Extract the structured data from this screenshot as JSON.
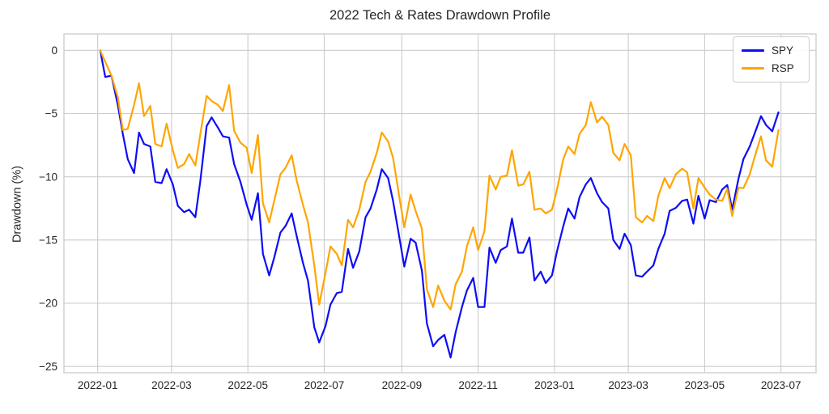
{
  "chart_data": {
    "type": "line",
    "title": "2022 Tech & Rates Drawdown Profile",
    "ylabel": "Drawdown (%)",
    "xlabel": "",
    "grid": true,
    "legend_position": "upper right",
    "background": "#ffffff",
    "grid_color": "#cbcbcb",
    "text_color": "#262626",
    "xlim": [
      "2021-12-05",
      "2023-07-29"
    ],
    "ylim": [
      -25.5,
      1.3
    ],
    "y_ticks": [
      {
        "label": "0",
        "value": 0
      },
      {
        "label": "−5",
        "value": -5
      },
      {
        "label": "−10",
        "value": -10
      },
      {
        "label": "−15",
        "value": -15
      },
      {
        "label": "−20",
        "value": -20
      },
      {
        "label": "−25",
        "value": -25
      }
    ],
    "x_ticks": [
      {
        "label": "2022-01",
        "date": "2022-01-01"
      },
      {
        "label": "2022-03",
        "date": "2022-03-01"
      },
      {
        "label": "2022-05",
        "date": "2022-05-01"
      },
      {
        "label": "2022-07",
        "date": "2022-07-01"
      },
      {
        "label": "2022-09",
        "date": "2022-09-01"
      },
      {
        "label": "2022-11",
        "date": "2022-11-01"
      },
      {
        "label": "2023-01",
        "date": "2023-01-01"
      },
      {
        "label": "2023-03",
        "date": "2023-03-01"
      },
      {
        "label": "2023-05",
        "date": "2023-05-01"
      },
      {
        "label": "2023-07",
        "date": "2023-07-01"
      }
    ],
    "x": [
      "2022-01-03",
      "2022-01-07",
      "2022-01-12",
      "2022-01-17",
      "2022-01-21",
      "2022-01-25",
      "2022-01-30",
      "2022-02-03",
      "2022-02-07",
      "2022-02-12",
      "2022-02-16",
      "2022-02-21",
      "2022-02-25",
      "2022-03-02",
      "2022-03-06",
      "2022-03-11",
      "2022-03-15",
      "2022-03-20",
      "2022-03-24",
      "2022-03-29",
      "2022-04-02",
      "2022-04-07",
      "2022-04-11",
      "2022-04-16",
      "2022-04-20",
      "2022-04-25",
      "2022-04-30",
      "2022-05-04",
      "2022-05-09",
      "2022-05-13",
      "2022-05-18",
      "2022-05-22",
      "2022-05-27",
      "2022-05-31",
      "2022-06-05",
      "2022-06-09",
      "2022-06-14",
      "2022-06-18",
      "2022-06-23",
      "2022-06-27",
      "2022-07-02",
      "2022-07-06",
      "2022-07-11",
      "2022-07-15",
      "2022-07-20",
      "2022-07-24",
      "2022-07-29",
      "2022-08-03",
      "2022-08-07",
      "2022-08-12",
      "2022-08-16",
      "2022-08-21",
      "2022-08-25",
      "2022-08-30",
      "2022-09-03",
      "2022-09-08",
      "2022-09-12",
      "2022-09-17",
      "2022-09-21",
      "2022-09-26",
      "2022-09-30",
      "2022-10-05",
      "2022-10-10",
      "2022-10-14",
      "2022-10-19",
      "2022-10-23",
      "2022-10-28",
      "2022-11-01",
      "2022-11-06",
      "2022-11-10",
      "2022-11-15",
      "2022-11-19",
      "2022-11-24",
      "2022-11-28",
      "2022-12-03",
      "2022-12-07",
      "2022-12-12",
      "2022-12-16",
      "2022-12-21",
      "2022-12-25",
      "2022-12-30",
      "2023-01-03",
      "2023-01-08",
      "2023-01-12",
      "2023-01-17",
      "2023-01-21",
      "2023-01-26",
      "2023-01-30",
      "2023-02-04",
      "2023-02-08",
      "2023-02-13",
      "2023-02-17",
      "2023-02-22",
      "2023-02-26",
      "2023-03-03",
      "2023-03-07",
      "2023-03-12",
      "2023-03-16",
      "2023-03-21",
      "2023-03-25",
      "2023-03-30",
      "2023-04-03",
      "2023-04-08",
      "2023-04-13",
      "2023-04-17",
      "2023-04-22",
      "2023-04-26",
      "2023-05-01",
      "2023-05-05",
      "2023-05-10",
      "2023-05-15",
      "2023-05-19",
      "2023-05-23",
      "2023-05-28",
      "2023-06-01",
      "2023-06-06",
      "2023-06-10",
      "2023-06-15",
      "2023-06-19",
      "2023-06-24",
      "2023-06-29"
    ],
    "series": [
      {
        "name": "SPY",
        "color": "#0d0df5",
        "values": [
          0,
          -2.1,
          -2.0,
          -4.3,
          -6.6,
          -8.6,
          -9.7,
          -6.5,
          -7.4,
          -7.6,
          -10.4,
          -10.5,
          -9.4,
          -10.6,
          -12.3,
          -12.8,
          -12.6,
          -13.2,
          -10.3,
          -6.0,
          -5.3,
          -6.1,
          -6.8,
          -6.9,
          -9.0,
          -10.4,
          -12.2,
          -13.4,
          -11.3,
          -16.1,
          -17.8,
          -16.4,
          -14.4,
          -13.9,
          -12.9,
          -14.7,
          -16.8,
          -18.2,
          -21.9,
          -23.1,
          -21.8,
          -20.1,
          -19.2,
          -19.1,
          -15.7,
          -17.2,
          -15.9,
          -13.2,
          -12.5,
          -11.0,
          -9.4,
          -10.1,
          -11.9,
          -14.8,
          -17.1,
          -14.9,
          -15.2,
          -17.4,
          -21.6,
          -23.4,
          -22.9,
          -22.5,
          -24.3,
          -22.3,
          -20.3,
          -19.0,
          -18.0,
          -20.3,
          -20.3,
          -15.6,
          -16.8,
          -15.8,
          -15.5,
          -13.3,
          -16.0,
          -16.0,
          -14.8,
          -18.2,
          -17.5,
          -18.4,
          -17.8,
          -15.9,
          -13.9,
          -12.5,
          -13.3,
          -11.6,
          -10.6,
          -10.1,
          -11.3,
          -12.0,
          -12.5,
          -15.0,
          -15.7,
          -14.5,
          -15.4,
          -17.8,
          -17.9,
          -17.5,
          -17.0,
          -15.7,
          -14.5,
          -12.7,
          -12.45,
          -11.9,
          -11.8,
          -13.7,
          -11.5,
          -13.3,
          -11.85,
          -12.0,
          -11.0,
          -10.65,
          -12.6,
          -10.15,
          -8.6,
          -7.6,
          -6.55,
          -5.2,
          -5.9,
          -6.4,
          -4.9
        ]
      },
      {
        "name": "RSP",
        "color": "#ffa500",
        "values": [
          0,
          -0.9,
          -2.0,
          -3.7,
          -6.3,
          -6.2,
          -4.3,
          -2.6,
          -5.2,
          -4.4,
          -7.4,
          -7.6,
          -5.8,
          -7.9,
          -9.3,
          -9.0,
          -8.2,
          -9.1,
          -6.6,
          -3.6,
          -4.0,
          -4.3,
          -4.8,
          -2.75,
          -6.35,
          -7.3,
          -7.7,
          -9.7,
          -6.7,
          -12.1,
          -13.6,
          -11.9,
          -9.8,
          -9.3,
          -8.3,
          -10.3,
          -12.2,
          -13.6,
          -17.0,
          -20.1,
          -17.6,
          -15.5,
          -16.1,
          -17.0,
          -13.4,
          -14.0,
          -12.6,
          -10.4,
          -9.6,
          -8.1,
          -6.5,
          -7.2,
          -8.5,
          -11.6,
          -14.0,
          -11.4,
          -12.7,
          -14.1,
          -18.9,
          -20.3,
          -18.6,
          -19.8,
          -20.5,
          -18.5,
          -17.5,
          -15.5,
          -14.0,
          -15.8,
          -14.3,
          -9.9,
          -11.0,
          -10.0,
          -9.9,
          -7.9,
          -10.7,
          -10.6,
          -9.6,
          -12.6,
          -12.5,
          -12.9,
          -12.6,
          -11.0,
          -8.6,
          -7.6,
          -8.2,
          -6.6,
          -5.9,
          -4.1,
          -5.7,
          -5.25,
          -5.9,
          -8.1,
          -8.7,
          -7.4,
          -8.3,
          -13.2,
          -13.6,
          -13.1,
          -13.5,
          -11.5,
          -10.1,
          -10.9,
          -9.8,
          -9.35,
          -9.65,
          -12.5,
          -10.1,
          -10.85,
          -11.4,
          -11.8,
          -11.9,
          -10.95,
          -13.1,
          -10.85,
          -10.9,
          -9.8,
          -8.4,
          -6.8,
          -8.7,
          -9.2,
          -6.3
        ]
      }
    ]
  }
}
